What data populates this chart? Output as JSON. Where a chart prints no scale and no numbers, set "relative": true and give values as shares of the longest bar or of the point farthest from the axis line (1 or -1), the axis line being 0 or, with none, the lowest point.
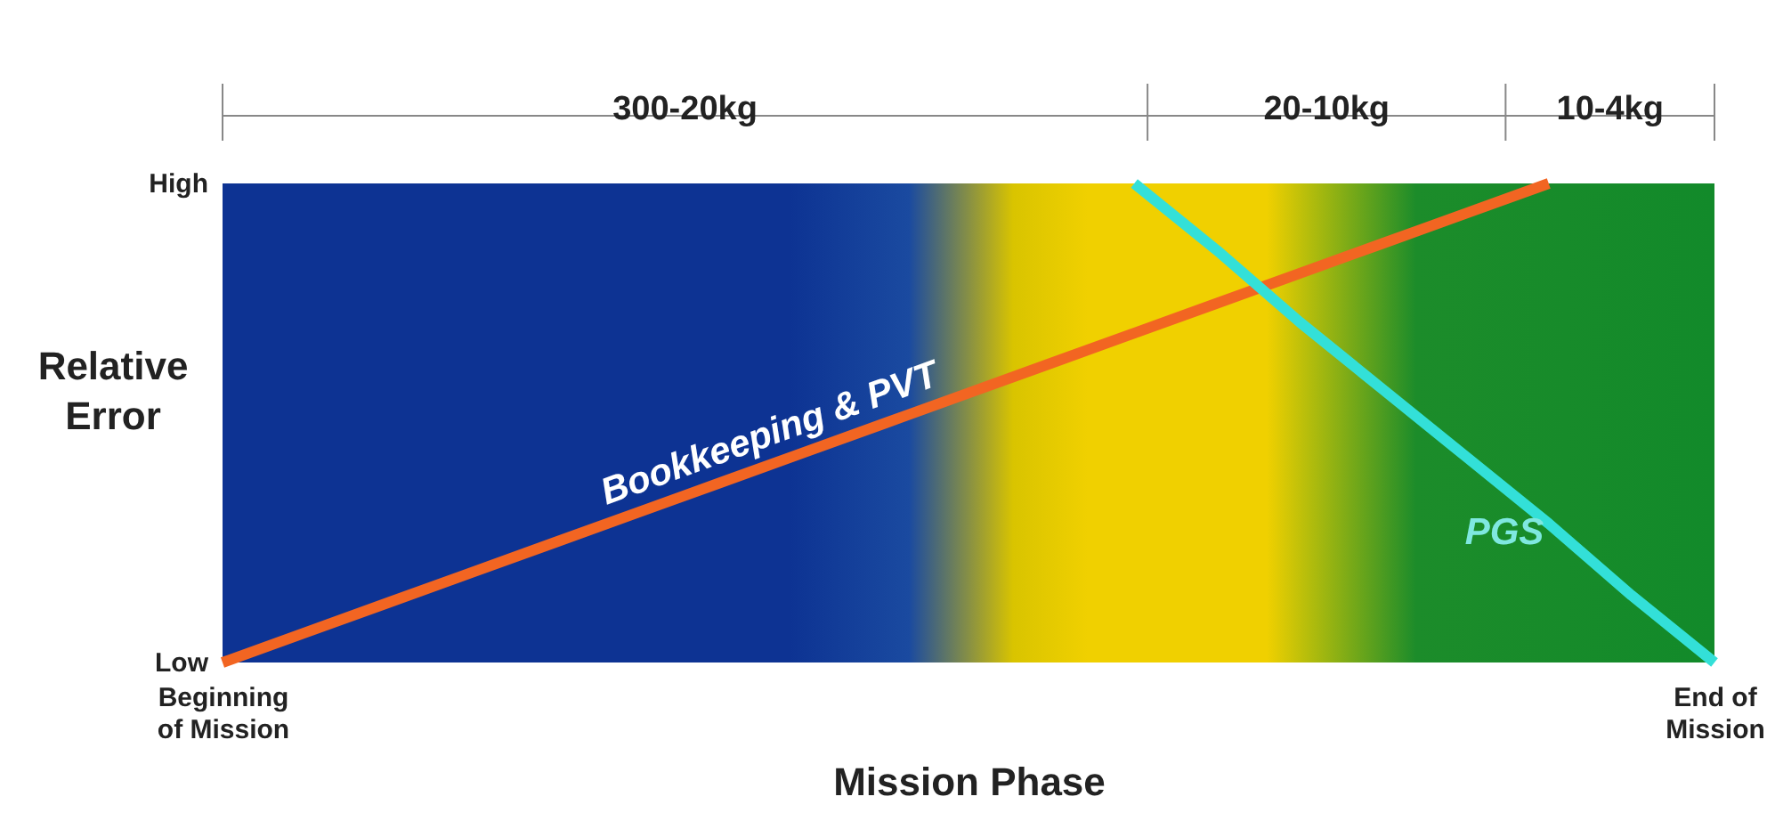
{
  "chart_data": {
    "type": "line",
    "xlabel": "Mission Phase",
    "ylabel": "Relative Error",
    "relative": true,
    "categories": [
      "Beginning of Mission",
      null,
      null,
      null,
      null,
      null,
      null,
      null,
      null,
      null,
      null,
      null,
      null,
      null,
      null,
      null,
      null,
      null,
      "End of Mission"
    ],
    "series": [
      {
        "name": "Bookkeeping & PVT",
        "color": "#f26522",
        "values": [
          0,
          0.0625,
          0.125,
          0.1875,
          0.25,
          0.3125,
          0.375,
          0.4375,
          0.5,
          0.5625,
          0.625,
          0.6875,
          0.75,
          0.8125,
          0.875,
          0.9375,
          1,
          null,
          null
        ]
      },
      {
        "name": "PGS",
        "color": "#33e0d8",
        "values": [
          null,
          null,
          null,
          null,
          null,
          null,
          null,
          null,
          null,
          null,
          null,
          1,
          0.86,
          0.71,
          0.57,
          0.43,
          0.29,
          0.14,
          0
        ]
      }
    ],
    "annotations": [
      "300-20kg",
      "20-10kg",
      "10-4kg",
      "Low",
      "High"
    ],
    "grid": false
  }
}
